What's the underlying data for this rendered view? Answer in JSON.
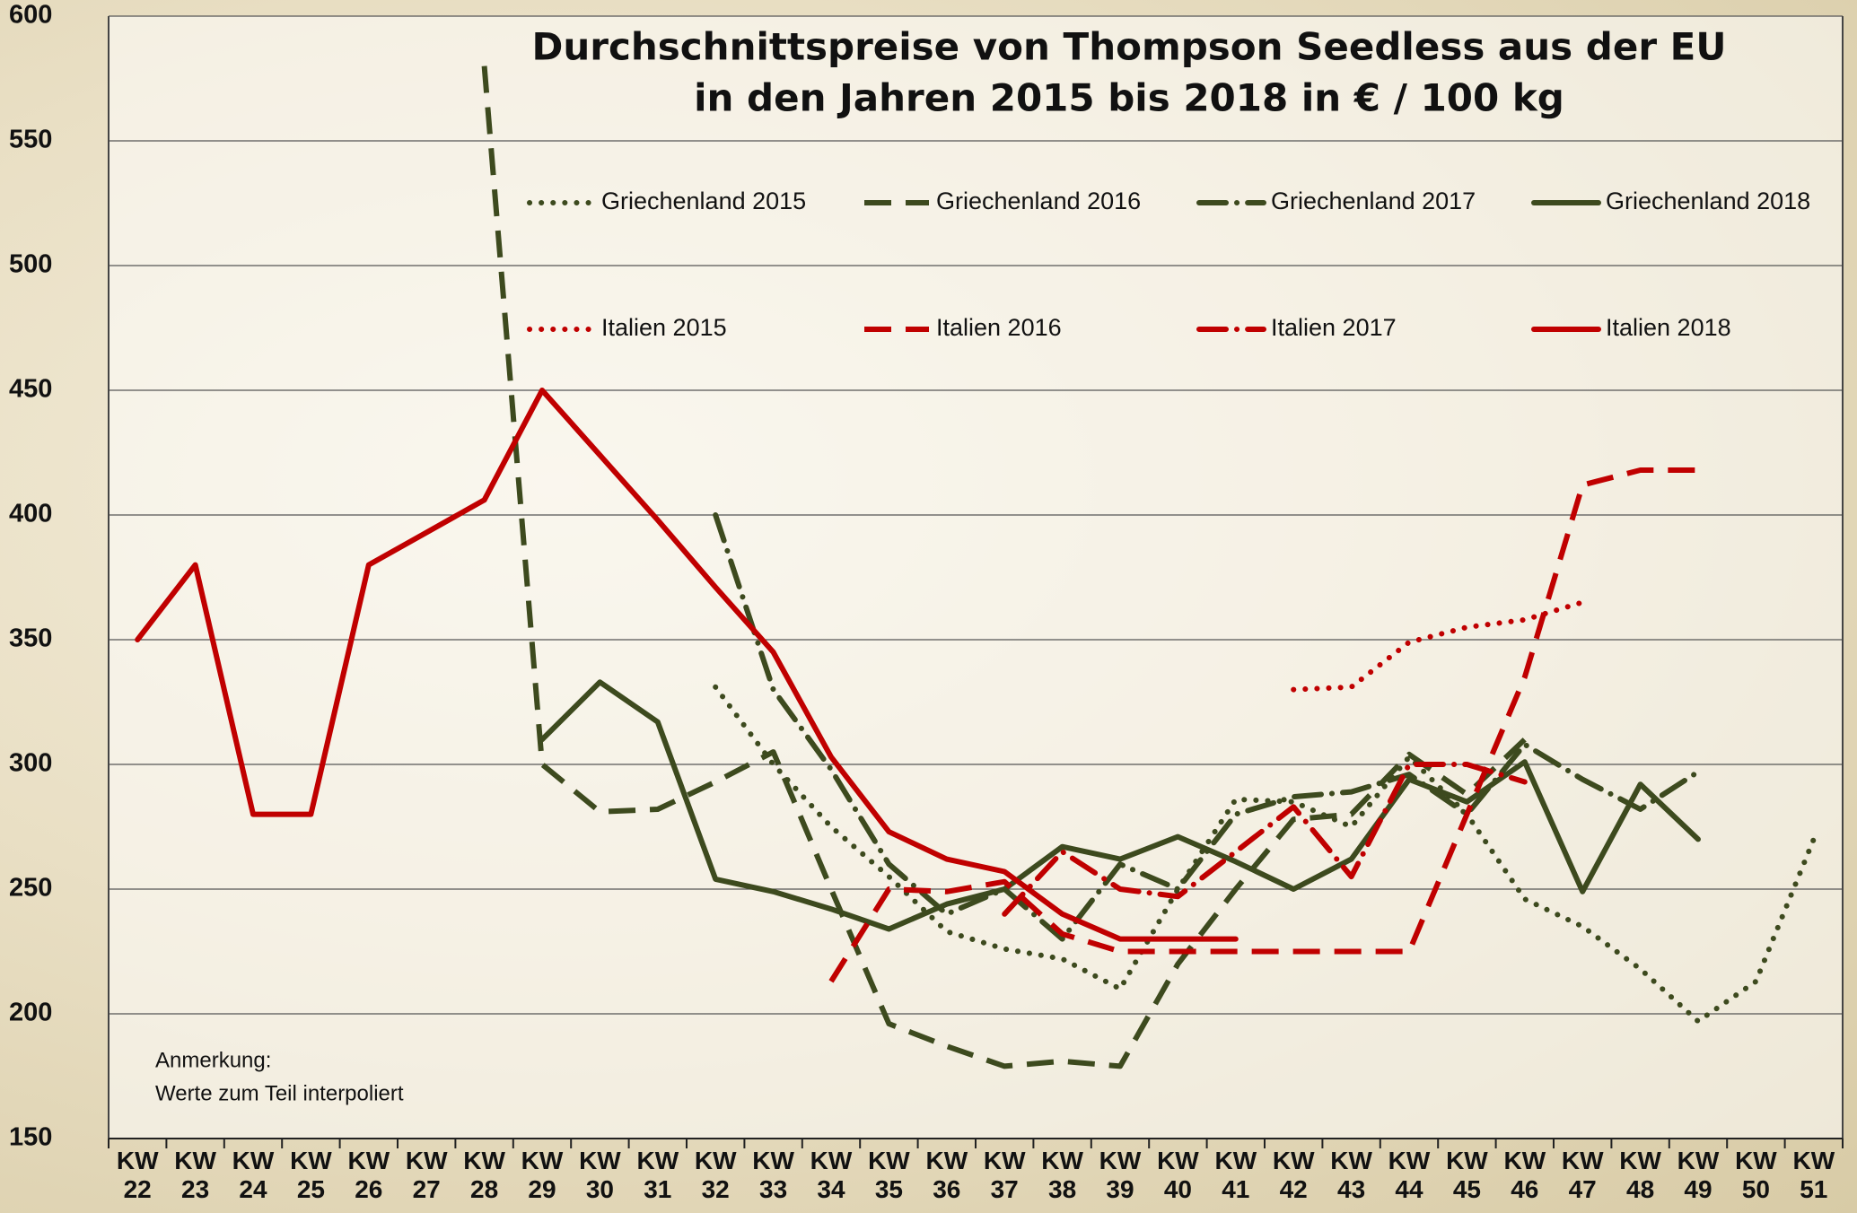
{
  "chart_data": {
    "type": "line",
    "title": [
      "Durchschnittspreise von Thompson Seedless aus der EU",
      "in den Jahren 2015 bis 2018 in € / 100 kg"
    ],
    "annotation": [
      "Anmerkung:",
      "Werte zum Teil interpoliert"
    ],
    "categories": [
      "KW 22",
      "KW 23",
      "KW 24",
      "KW 25",
      "KW 26",
      "KW 27",
      "KW 28",
      "KW 29",
      "KW 30",
      "KW 31",
      "KW 32",
      "KW 33",
      "KW 34",
      "KW 35",
      "KW 36",
      "KW 37",
      "KW 38",
      "KW 39",
      "KW 40",
      "KW 41",
      "KW 42",
      "KW 43",
      "KW 44",
      "KW 45",
      "KW 46",
      "KW 47",
      "KW 48",
      "KW 49",
      "KW 50",
      "KW 51"
    ],
    "ylim": [
      150,
      600
    ],
    "yticks": [
      150,
      200,
      250,
      300,
      350,
      400,
      450,
      500,
      550,
      600
    ],
    "grid": true,
    "series": [
      {
        "name": "Griechenland 2015",
        "color": "#3d4a1e",
        "dash": "dotted",
        "values": [
          null,
          null,
          null,
          null,
          null,
          null,
          null,
          null,
          null,
          null,
          331,
          300,
          275,
          255,
          233,
          226,
          222,
          210,
          250,
          286,
          285,
          275,
          303,
          280,
          246,
          235,
          218,
          197,
          213,
          270
        ]
      },
      {
        "name": "Griechenland 2016",
        "color": "#3d4a1e",
        "dash": "dashed",
        "values": [
          null,
          null,
          null,
          null,
          null,
          null,
          580,
          300,
          281,
          282,
          293,
          305,
          250,
          196,
          187,
          179,
          181,
          179,
          220,
          250,
          278,
          280,
          304,
          288,
          310,
          null,
          null,
          null,
          null,
          null
        ]
      },
      {
        "name": "Griechenland 2017",
        "color": "#3d4a1e",
        "dash": "dashdot",
        "values": [
          null,
          null,
          null,
          null,
          null,
          null,
          null,
          null,
          null,
          null,
          400,
          330,
          298,
          260,
          240,
          250,
          230,
          260,
          250,
          280,
          287,
          289,
          296,
          280,
          308,
          294,
          282,
          297,
          null,
          null
        ]
      },
      {
        "name": "Griechenland 2018",
        "color": "#3d4a1e",
        "dash": "solid",
        "values": [
          null,
          null,
          null,
          null,
          null,
          null,
          null,
          310,
          333,
          317,
          254,
          249,
          242,
          234,
          244,
          250,
          267,
          262,
          271,
          261,
          250,
          262,
          294,
          285,
          301,
          249,
          292,
          270,
          null,
          null
        ]
      },
      {
        "name": "Italien 2015",
        "color": "#c00000",
        "dash": "dotted",
        "values": [
          null,
          null,
          null,
          null,
          null,
          null,
          null,
          null,
          null,
          null,
          null,
          null,
          null,
          null,
          null,
          null,
          null,
          null,
          null,
          null,
          330,
          331,
          349,
          355,
          358,
          365,
          null,
          null,
          null,
          null
        ]
      },
      {
        "name": "Italien 2016",
        "color": "#c00000",
        "dash": "dashed",
        "values": [
          null,
          null,
          null,
          null,
          null,
          null,
          null,
          null,
          null,
          null,
          null,
          null,
          213,
          250,
          249,
          253,
          232,
          225,
          225,
          225,
          225,
          225,
          225,
          280,
          335,
          412,
          418,
          418,
          null,
          null
        ]
      },
      {
        "name": "Italien 2017",
        "color": "#c00000",
        "dash": "dashdot",
        "values": [
          null,
          null,
          null,
          null,
          null,
          null,
          null,
          null,
          null,
          null,
          null,
          null,
          null,
          null,
          null,
          240,
          265,
          250,
          247,
          265,
          283,
          255,
          300,
          300,
          293,
          null,
          null,
          null,
          null,
          null
        ]
      },
      {
        "name": "Italien 2018",
        "color": "#c00000",
        "dash": "solid",
        "values": [
          350,
          380,
          280,
          280,
          380,
          393,
          406,
          450,
          424,
          398,
          371,
          345,
          303,
          273,
          262,
          257,
          240,
          230,
          230,
          230,
          null,
          null,
          null,
          null,
          null,
          null,
          null,
          null,
          null,
          null
        ]
      }
    ]
  }
}
